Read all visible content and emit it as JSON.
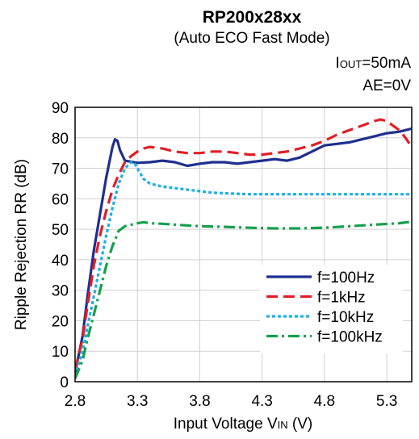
{
  "chart_data": {
    "type": "line",
    "title": "RP200x28xx",
    "subtitle": "(Auto ECO Fast Mode)",
    "conditions": [
      {
        "main": "I",
        "sub": "OUT",
        "tail": "=50mA"
      },
      {
        "main": "AE=0V",
        "sub": "",
        "tail": ""
      }
    ],
    "xlabel": {
      "pre": "Input Voltage V",
      "sub": "IN",
      "post": " (V)"
    },
    "ylabel": "Ripple Rejection RR (dB)",
    "xlim": [
      2.8,
      5.5
    ],
    "ylim": [
      0,
      90
    ],
    "xticks": [
      "2.8",
      "3.3",
      "3.8",
      "4.3",
      "4.8",
      "5.3"
    ],
    "yticks": [
      "0",
      "10",
      "20",
      "30",
      "40",
      "50",
      "60",
      "70",
      "80",
      "90"
    ],
    "grid": true,
    "legend_position": "lower-right",
    "series": [
      {
        "name": "f=100Hz",
        "color": "#1f2f8f",
        "dash": "",
        "x": [
          2.8,
          2.86,
          2.9,
          2.95,
          3.0,
          3.05,
          3.1,
          3.12,
          3.14,
          3.16,
          3.2,
          3.3,
          3.4,
          3.5,
          3.6,
          3.7,
          3.8,
          3.9,
          4.0,
          4.1,
          4.2,
          4.3,
          4.4,
          4.5,
          4.6,
          4.7,
          4.8,
          4.9,
          5.0,
          5.1,
          5.2,
          5.3,
          5.4,
          5.5
        ],
        "y": [
          3,
          15,
          28,
          43,
          55,
          67,
          77,
          79.5,
          79,
          76,
          72.5,
          71.8,
          72,
          72.5,
          72,
          70.8,
          71.5,
          72,
          72,
          71.5,
          72,
          72.5,
          73,
          72.5,
          73.5,
          75.5,
          77.5,
          78,
          78.5,
          79.5,
          80.5,
          81.5,
          82,
          83
        ]
      },
      {
        "name": "f=1kHz",
        "color": "#e21e26",
        "dash": "14 7",
        "x": [
          2.8,
          2.86,
          2.9,
          2.95,
          3.0,
          3.05,
          3.1,
          3.15,
          3.2,
          3.25,
          3.3,
          3.35,
          3.4,
          3.5,
          3.6,
          3.7,
          3.8,
          3.9,
          4.0,
          4.1,
          4.2,
          4.3,
          4.4,
          4.5,
          4.6,
          4.7,
          4.8,
          4.9,
          5.0,
          5.1,
          5.2,
          5.25,
          5.3,
          5.35,
          5.4,
          5.45,
          5.5
        ],
        "y": [
          4,
          14,
          25,
          38,
          48,
          56,
          63,
          68,
          72,
          74,
          75.5,
          76.5,
          77,
          76.5,
          75.5,
          75,
          75,
          75.5,
          75.5,
          75,
          74.5,
          74.5,
          75,
          75.5,
          76.5,
          77.5,
          79,
          81,
          82.5,
          84,
          85.5,
          86,
          85.5,
          84,
          82.5,
          80,
          77
        ]
      },
      {
        "name": "f=10kHz",
        "color": "#1ab0e8",
        "dash": "4 3",
        "x": [
          2.8,
          2.86,
          2.9,
          2.95,
          3.0,
          3.05,
          3.1,
          3.15,
          3.2,
          3.25,
          3.28,
          3.3,
          3.35,
          3.4,
          3.5,
          3.6,
          3.7,
          3.8,
          3.9,
          4.0,
          4.2,
          4.4,
          4.6,
          4.8,
          5.0,
          5.2,
          5.4,
          5.5
        ],
        "y": [
          2,
          10,
          18,
          28,
          38,
          48,
          57,
          65,
          70,
          72,
          71.5,
          70,
          66.5,
          65,
          64,
          63.5,
          63,
          62.5,
          62,
          61.8,
          61.5,
          61.5,
          61.5,
          61.5,
          61.5,
          61.5,
          61.5,
          61.5
        ]
      },
      {
        "name": "f=100kHz",
        "color": "#14a14b",
        "dash": "14 5 3 5",
        "x": [
          2.8,
          2.86,
          2.9,
          2.95,
          3.0,
          3.05,
          3.1,
          3.15,
          3.2,
          3.25,
          3.3,
          3.35,
          3.4,
          3.5,
          3.6,
          3.8,
          4.0,
          4.2,
          4.4,
          4.6,
          4.8,
          5.0,
          5.2,
          5.4,
          5.5
        ],
        "y": [
          1,
          7,
          14,
          22,
          30,
          38,
          44.5,
          49.5,
          51,
          51.5,
          52,
          52.3,
          52,
          51.8,
          51.5,
          51,
          50.8,
          50.5,
          50.3,
          50.3,
          50.5,
          51,
          51.5,
          52,
          52.5
        ]
      }
    ]
  }
}
